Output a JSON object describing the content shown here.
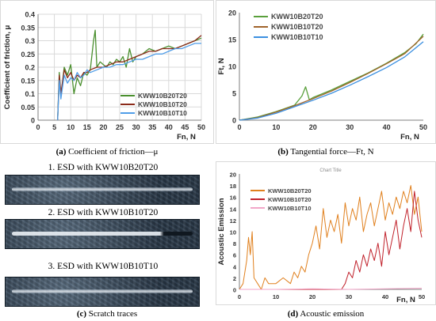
{
  "colors": {
    "a": [
      "#4a8f2e",
      "#8b2a1a",
      "#4f9de8"
    ],
    "b": [
      "#5aa03c",
      "#a0632a",
      "#3b8fe0"
    ],
    "d": [
      "#e0801e",
      "#c0202a",
      "#f2a6c8"
    ]
  },
  "chart_data": [
    {
      "id": "a",
      "type": "line",
      "title": "",
      "xlabel": "Fn, N",
      "ylabel": "Coefficient of friction, μ",
      "xlim": [
        0,
        50
      ],
      "ylim": [
        0,
        0.4
      ],
      "xticks": [
        "0",
        "5",
        "10",
        "15",
        "20",
        "25",
        "30",
        "35",
        "40",
        "45",
        "50"
      ],
      "yticks": [
        "0",
        "0.05",
        "0.1",
        "0.15",
        "0.2",
        "0.25",
        "0.3",
        "0.35",
        "0.4"
      ],
      "grid": true,
      "legend_position": "bottom-right",
      "caption_id": "(a)",
      "caption": "Coefficient of friction—μ",
      "series": [
        {
          "name": "KWW10B20T20",
          "x": [
            6,
            6.5,
            7,
            8,
            9,
            10,
            11,
            12,
            13,
            14,
            15,
            16,
            17,
            17.5,
            18,
            19,
            20,
            21,
            22,
            23,
            24,
            25,
            26,
            27,
            28,
            29,
            30,
            32,
            34,
            36,
            38,
            40,
            42,
            44,
            46,
            48,
            50
          ],
          "y": [
            0.0,
            0.18,
            0.09,
            0.2,
            0.17,
            0.21,
            0.1,
            0.16,
            0.13,
            0.18,
            0.17,
            0.19,
            0.3,
            0.34,
            0.2,
            0.22,
            0.21,
            0.2,
            0.22,
            0.21,
            0.23,
            0.22,
            0.24,
            0.2,
            0.27,
            0.22,
            0.24,
            0.25,
            0.27,
            0.26,
            0.27,
            0.28,
            0.27,
            0.28,
            0.29,
            0.3,
            0.31
          ]
        },
        {
          "name": "KWW10B10T20",
          "x": [
            6,
            6.5,
            7,
            8,
            9,
            10,
            11,
            12,
            13,
            14,
            15,
            16,
            18,
            20,
            22,
            24,
            26,
            28,
            30,
            32,
            34,
            36,
            38,
            40,
            42,
            44,
            46,
            48,
            50
          ],
          "y": [
            0.0,
            0.17,
            0.1,
            0.19,
            0.16,
            0.18,
            0.15,
            0.17,
            0.16,
            0.18,
            0.18,
            0.19,
            0.2,
            0.2,
            0.21,
            0.22,
            0.22,
            0.23,
            0.24,
            0.25,
            0.26,
            0.26,
            0.27,
            0.27,
            0.27,
            0.28,
            0.29,
            0.3,
            0.32
          ]
        },
        {
          "name": "KWW10B10T10",
          "x": [
            6,
            6.5,
            7,
            8,
            9,
            10,
            11,
            12,
            13,
            14,
            15,
            16,
            18,
            20,
            22,
            24,
            26,
            28,
            30,
            32,
            34,
            36,
            38,
            40,
            42,
            44,
            46,
            48,
            50
          ],
          "y": [
            0.0,
            0.15,
            0.08,
            0.17,
            0.14,
            0.16,
            0.15,
            0.18,
            0.16,
            0.17,
            0.19,
            0.18,
            0.19,
            0.2,
            0.2,
            0.21,
            0.21,
            0.22,
            0.23,
            0.23,
            0.24,
            0.25,
            0.25,
            0.26,
            0.27,
            0.27,
            0.28,
            0.29,
            0.29
          ]
        }
      ]
    },
    {
      "id": "b",
      "type": "line",
      "title": "",
      "xlabel": "Fn, N",
      "ylabel": "Ft, N",
      "xlim": [
        0,
        50
      ],
      "ylim": [
        0,
        20
      ],
      "xticks": [
        "0",
        "10",
        "20",
        "30",
        "40",
        "50"
      ],
      "yticks": [
        "0",
        "5",
        "10",
        "15",
        "20"
      ],
      "grid": false,
      "legend_position": "top-left",
      "caption_id": "(b)",
      "caption": "Tangential force—Ft, N",
      "series": [
        {
          "name": "KWW10B20T20",
          "x": [
            0,
            5,
            10,
            15,
            17,
            18,
            19,
            20,
            25,
            30,
            35,
            40,
            45,
            48,
            50
          ],
          "y": [
            0,
            0.6,
            1.6,
            2.8,
            4.5,
            6.2,
            3.8,
            4.2,
            5.6,
            7.2,
            8.8,
            10.6,
            12.6,
            14.2,
            16.0
          ]
        },
        {
          "name": "KWW10B10T20",
          "x": [
            0,
            5,
            10,
            15,
            20,
            25,
            30,
            35,
            40,
            45,
            50
          ],
          "y": [
            0,
            0.5,
            1.5,
            2.7,
            4.0,
            5.4,
            7.0,
            8.7,
            10.5,
            12.4,
            15.6
          ]
        },
        {
          "name": "KWW10B10T10",
          "x": [
            0,
            5,
            10,
            15,
            20,
            25,
            30,
            35,
            40,
            45,
            50
          ],
          "y": [
            0,
            0.4,
            1.3,
            2.5,
            3.7,
            5.0,
            6.5,
            8.1,
            9.8,
            11.8,
            14.6
          ]
        }
      ]
    },
    {
      "id": "d",
      "type": "line",
      "title": "Chart Title",
      "xlabel": "Fn, N",
      "ylabel": "Acoustic Emission",
      "xlim": [
        0,
        50
      ],
      "ylim": [
        0,
        20
      ],
      "xticks": [
        "0",
        "10",
        "20",
        "30",
        "40",
        "50"
      ],
      "yticks": [
        "0",
        "2",
        "4",
        "6",
        "8",
        "10",
        "12",
        "14",
        "16",
        "18",
        "20"
      ],
      "grid": false,
      "legend_position": "top-left",
      "caption_id": "(d)",
      "caption": "Acoustic emission",
      "series": [
        {
          "name": "KWW10B20T20",
          "x": [
            0,
            1,
            2,
            2.5,
            3,
            3.5,
            4,
            5,
            6,
            7,
            8,
            10,
            12,
            14,
            15,
            16,
            17,
            18,
            19,
            20,
            21,
            22,
            23,
            24,
            25,
            26,
            27,
            28,
            29,
            30,
            31,
            32,
            33,
            34,
            35,
            36,
            37,
            38,
            39,
            40,
            41,
            42,
            43,
            44,
            45,
            46,
            47,
            48,
            49,
            50
          ],
          "y": [
            0,
            1,
            5,
            9,
            6,
            10,
            2,
            1,
            0,
            2,
            1,
            1,
            2,
            1,
            3,
            2,
            4,
            3,
            6,
            8,
            11,
            7,
            14,
            9,
            12,
            10,
            13,
            8,
            15,
            11,
            14,
            12,
            16,
            10,
            13,
            15,
            11,
            14,
            17,
            12,
            15,
            13,
            16,
            14,
            17,
            15,
            18,
            13,
            16,
            10
          ]
        },
        {
          "name": "KWW10B10T20",
          "x": [
            0,
            10,
            20,
            28,
            29,
            30,
            31,
            32,
            33,
            34,
            35,
            36,
            37,
            38,
            39,
            40,
            41,
            42,
            43,
            44,
            45,
            46,
            47,
            48,
            49,
            50
          ],
          "y": [
            0,
            0,
            0,
            0,
            1,
            3,
            2,
            5,
            3,
            6,
            4,
            7,
            5,
            8,
            4,
            10,
            6,
            9,
            12,
            7,
            11,
            14,
            10,
            17,
            12,
            9
          ]
        },
        {
          "name": "KWW10B10T10",
          "x": [
            0,
            10,
            20,
            30,
            40,
            50
          ],
          "y": [
            0,
            0,
            0.1,
            0,
            0.1,
            0.2
          ]
        }
      ]
    }
  ],
  "traces": {
    "caption_id": "(c)",
    "caption": "Scratch traces",
    "items": [
      {
        "label": "1. ESD with KWW10B20T20"
      },
      {
        "label": "2. ESD with KWW10B10T20"
      },
      {
        "label": "3. ESD with KWW10B10T10"
      }
    ]
  }
}
